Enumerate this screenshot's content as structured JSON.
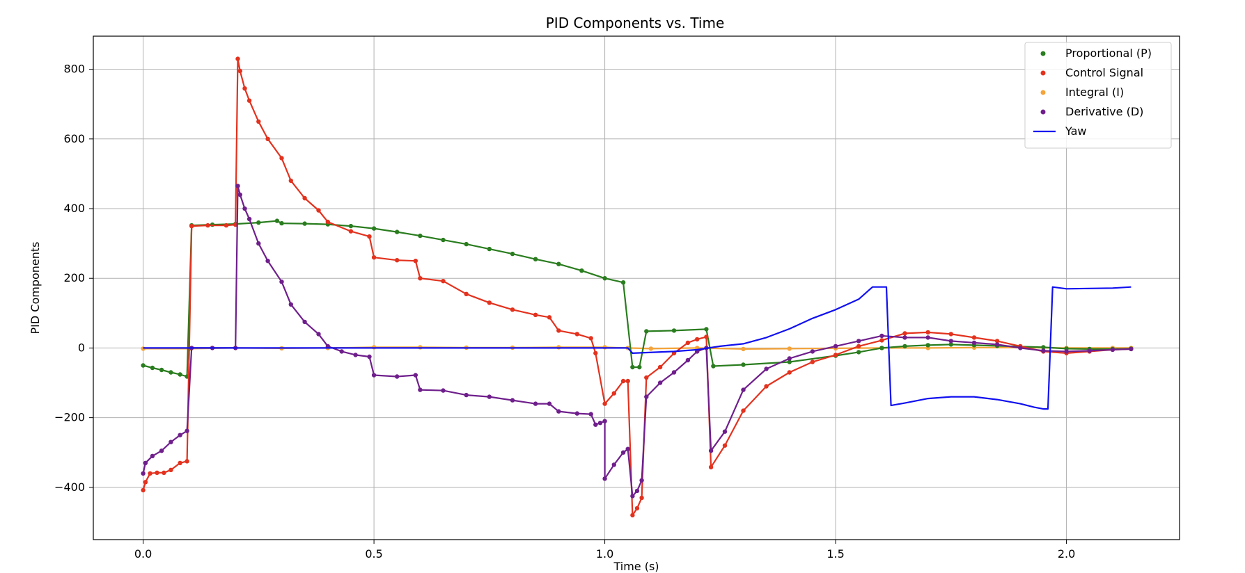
{
  "chart_data": {
    "type": "line",
    "title": "PID Components vs. Time",
    "xlabel": "Time (s)",
    "ylabel": "PID Components",
    "xlim": [
      -0.108,
      2.245
    ],
    "ylim": [
      -550,
      895
    ],
    "xticks": [
      0.0,
      0.5,
      1.0,
      1.5,
      2.0
    ],
    "xtick_labels": [
      "0.0",
      "0.5",
      "1.0",
      "1.5",
      "2.0"
    ],
    "yticks": [
      -400,
      -200,
      0,
      200,
      400,
      600,
      800
    ],
    "ytick_labels": [
      "−400",
      "−200",
      "0",
      "200",
      "400",
      "600",
      "800"
    ],
    "grid": true,
    "legend_position": "top-right",
    "series": [
      {
        "name": "Proportional (P)",
        "color": "#2a7d1f",
        "marker": "dot",
        "points": [
          [
            0.0,
            -50
          ],
          [
            0.02,
            -57
          ],
          [
            0.04,
            -63
          ],
          [
            0.06,
            -70
          ],
          [
            0.08,
            -76
          ],
          [
            0.095,
            -82
          ],
          [
            0.105,
            352
          ],
          [
            0.15,
            354
          ],
          [
            0.2,
            356
          ],
          [
            0.25,
            360
          ],
          [
            0.29,
            365
          ],
          [
            0.3,
            358
          ],
          [
            0.35,
            357
          ],
          [
            0.4,
            355
          ],
          [
            0.45,
            350
          ],
          [
            0.5,
            343
          ],
          [
            0.55,
            333
          ],
          [
            0.6,
            322
          ],
          [
            0.65,
            310
          ],
          [
            0.7,
            298
          ],
          [
            0.75,
            284
          ],
          [
            0.8,
            270
          ],
          [
            0.85,
            255
          ],
          [
            0.9,
            241
          ],
          [
            0.95,
            222
          ],
          [
            1.0,
            200
          ],
          [
            1.04,
            188
          ],
          [
            1.06,
            -55
          ],
          [
            1.075,
            -55
          ],
          [
            1.09,
            48
          ],
          [
            1.15,
            50
          ],
          [
            1.22,
            54
          ],
          [
            1.235,
            -52
          ],
          [
            1.3,
            -48
          ],
          [
            1.4,
            -40
          ],
          [
            1.5,
            -22
          ],
          [
            1.55,
            -12
          ],
          [
            1.6,
            0
          ],
          [
            1.65,
            5
          ],
          [
            1.7,
            8
          ],
          [
            1.75,
            10
          ],
          [
            1.8,
            8
          ],
          [
            1.85,
            6
          ],
          [
            1.9,
            4
          ],
          [
            1.95,
            2
          ],
          [
            2.0,
            -2
          ],
          [
            2.05,
            -3
          ],
          [
            2.1,
            -3
          ],
          [
            2.14,
            -2
          ]
        ]
      },
      {
        "name": "Control Signal",
        "color": "#e3321e",
        "marker": "dot",
        "points": [
          [
            0.0,
            -408
          ],
          [
            0.005,
            -385
          ],
          [
            0.015,
            -360
          ],
          [
            0.03,
            -358
          ],
          [
            0.045,
            -358
          ],
          [
            0.06,
            -350
          ],
          [
            0.08,
            -330
          ],
          [
            0.095,
            -325
          ],
          [
            0.105,
            350
          ],
          [
            0.14,
            352
          ],
          [
            0.18,
            352
          ],
          [
            0.2,
            354
          ],
          [
            0.205,
            830
          ],
          [
            0.21,
            795
          ],
          [
            0.22,
            745
          ],
          [
            0.23,
            710
          ],
          [
            0.25,
            650
          ],
          [
            0.27,
            600
          ],
          [
            0.3,
            545
          ],
          [
            0.32,
            480
          ],
          [
            0.35,
            430
          ],
          [
            0.38,
            395
          ],
          [
            0.4,
            362
          ],
          [
            0.45,
            335
          ],
          [
            0.49,
            320
          ],
          [
            0.5,
            260
          ],
          [
            0.55,
            252
          ],
          [
            0.59,
            250
          ],
          [
            0.6,
            200
          ],
          [
            0.65,
            192
          ],
          [
            0.7,
            155
          ],
          [
            0.75,
            130
          ],
          [
            0.8,
            110
          ],
          [
            0.85,
            95
          ],
          [
            0.88,
            88
          ],
          [
            0.9,
            50
          ],
          [
            0.94,
            40
          ],
          [
            0.97,
            28
          ],
          [
            0.98,
            -15
          ],
          [
            1.0,
            -160
          ],
          [
            1.02,
            -130
          ],
          [
            1.04,
            -95
          ],
          [
            1.05,
            -95
          ],
          [
            1.06,
            -480
          ],
          [
            1.07,
            -460
          ],
          [
            1.08,
            -430
          ],
          [
            1.09,
            -85
          ],
          [
            1.12,
            -55
          ],
          [
            1.15,
            -15
          ],
          [
            1.18,
            15
          ],
          [
            1.2,
            25
          ],
          [
            1.22,
            32
          ],
          [
            1.23,
            -342
          ],
          [
            1.26,
            -280
          ],
          [
            1.3,
            -180
          ],
          [
            1.35,
            -110
          ],
          [
            1.4,
            -70
          ],
          [
            1.45,
            -40
          ],
          [
            1.5,
            -20
          ],
          [
            1.55,
            5
          ],
          [
            1.6,
            22
          ],
          [
            1.65,
            42
          ],
          [
            1.7,
            45
          ],
          [
            1.75,
            40
          ],
          [
            1.8,
            30
          ],
          [
            1.85,
            20
          ],
          [
            1.9,
            5
          ],
          [
            1.95,
            -10
          ],
          [
            2.0,
            -15
          ],
          [
            2.05,
            -10
          ],
          [
            2.1,
            -5
          ],
          [
            2.14,
            -3
          ]
        ]
      },
      {
        "name": "Integral (I)",
        "color": "#f4a43a",
        "marker": "dot",
        "points": [
          [
            0.0,
            -2
          ],
          [
            0.1,
            -2
          ],
          [
            0.2,
            0
          ],
          [
            0.3,
            -1
          ],
          [
            0.4,
            0
          ],
          [
            0.5,
            2
          ],
          [
            0.6,
            2
          ],
          [
            0.7,
            1
          ],
          [
            0.8,
            1
          ],
          [
            0.9,
            2
          ],
          [
            1.0,
            2
          ],
          [
            1.05,
            0
          ],
          [
            1.1,
            -2
          ],
          [
            1.2,
            0
          ],
          [
            1.3,
            -3
          ],
          [
            1.4,
            -2
          ],
          [
            1.5,
            -1
          ],
          [
            1.6,
            0
          ],
          [
            1.7,
            0
          ],
          [
            1.8,
            1
          ],
          [
            1.9,
            1
          ],
          [
            2.0,
            0
          ],
          [
            2.1,
            0
          ],
          [
            2.14,
            0
          ]
        ]
      },
      {
        "name": "Derivative (D)",
        "color": "#6f1f8c",
        "marker": "dot",
        "points": [
          [
            0.0,
            -360
          ],
          [
            0.005,
            -330
          ],
          [
            0.02,
            -310
          ],
          [
            0.04,
            -295
          ],
          [
            0.06,
            -270
          ],
          [
            0.08,
            -250
          ],
          [
            0.095,
            -238
          ],
          [
            0.105,
            0
          ],
          [
            0.15,
            0
          ],
          [
            0.2,
            0
          ],
          [
            0.205,
            465
          ],
          [
            0.21,
            440
          ],
          [
            0.22,
            400
          ],
          [
            0.23,
            370
          ],
          [
            0.25,
            300
          ],
          [
            0.27,
            250
          ],
          [
            0.3,
            190
          ],
          [
            0.32,
            125
          ],
          [
            0.35,
            75
          ],
          [
            0.38,
            40
          ],
          [
            0.4,
            5
          ],
          [
            0.43,
            -10
          ],
          [
            0.46,
            -20
          ],
          [
            0.49,
            -25
          ],
          [
            0.5,
            -78
          ],
          [
            0.55,
            -82
          ],
          [
            0.59,
            -78
          ],
          [
            0.6,
            -120
          ],
          [
            0.65,
            -122
          ],
          [
            0.7,
            -135
          ],
          [
            0.75,
            -140
          ],
          [
            0.8,
            -150
          ],
          [
            0.85,
            -160
          ],
          [
            0.88,
            -160
          ],
          [
            0.9,
            -182
          ],
          [
            0.94,
            -188
          ],
          [
            0.97,
            -190
          ],
          [
            0.98,
            -220
          ],
          [
            0.99,
            -215
          ],
          [
            1.0,
            -210
          ],
          [
            1.0,
            -375
          ],
          [
            1.02,
            -335
          ],
          [
            1.04,
            -300
          ],
          [
            1.05,
            -290
          ],
          [
            1.06,
            -425
          ],
          [
            1.07,
            -410
          ],
          [
            1.08,
            -380
          ],
          [
            1.09,
            -140
          ],
          [
            1.12,
            -100
          ],
          [
            1.15,
            -70
          ],
          [
            1.18,
            -35
          ],
          [
            1.2,
            -10
          ],
          [
            1.22,
            0
          ],
          [
            1.23,
            -295
          ],
          [
            1.26,
            -240
          ],
          [
            1.3,
            -120
          ],
          [
            1.35,
            -60
          ],
          [
            1.4,
            -30
          ],
          [
            1.45,
            -10
          ],
          [
            1.5,
            5
          ],
          [
            1.55,
            20
          ],
          [
            1.6,
            35
          ],
          [
            1.65,
            30
          ],
          [
            1.7,
            30
          ],
          [
            1.75,
            20
          ],
          [
            1.8,
            15
          ],
          [
            1.85,
            10
          ],
          [
            1.9,
            0
          ],
          [
            1.95,
            -8
          ],
          [
            2.0,
            -10
          ],
          [
            2.05,
            -8
          ],
          [
            2.1,
            -5
          ],
          [
            2.14,
            -3
          ]
        ]
      },
      {
        "name": "Yaw",
        "color": "#1010f0",
        "marker": "none",
        "points": [
          [
            0.0,
            0
          ],
          [
            0.5,
            0
          ],
          [
            1.0,
            0
          ],
          [
            1.05,
            0
          ],
          [
            1.06,
            -15
          ],
          [
            1.15,
            -10
          ],
          [
            1.2,
            -5
          ],
          [
            1.25,
            5
          ],
          [
            1.3,
            12
          ],
          [
            1.35,
            30
          ],
          [
            1.4,
            55
          ],
          [
            1.45,
            85
          ],
          [
            1.5,
            110
          ],
          [
            1.55,
            140
          ],
          [
            1.58,
            175
          ],
          [
            1.61,
            175
          ],
          [
            1.62,
            -165
          ],
          [
            1.65,
            -158
          ],
          [
            1.7,
            -145
          ],
          [
            1.75,
            -140
          ],
          [
            1.8,
            -140
          ],
          [
            1.85,
            -148
          ],
          [
            1.9,
            -160
          ],
          [
            1.93,
            -170
          ],
          [
            1.95,
            -175
          ],
          [
            1.96,
            -175
          ],
          [
            1.97,
            175
          ],
          [
            2.0,
            170
          ],
          [
            2.1,
            172
          ],
          [
            2.14,
            175
          ]
        ]
      }
    ]
  }
}
